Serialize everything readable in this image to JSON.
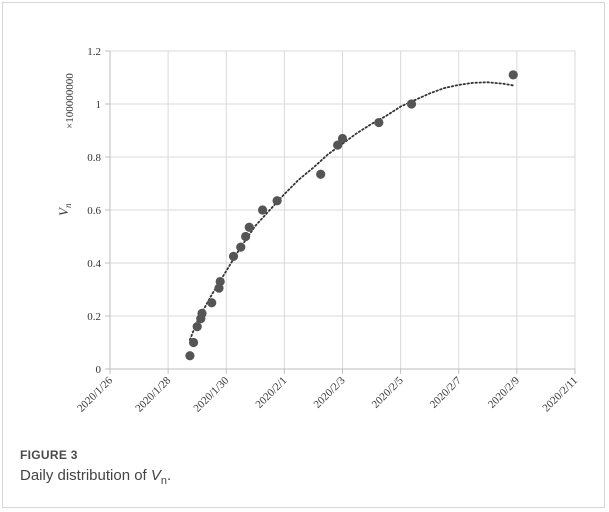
{
  "chart_data": {
    "type": "scatter",
    "title": "",
    "xlabel": "",
    "ylabel": "V",
    "ylabel_subscript": "n",
    "y_multiplier": "×100000000",
    "x_tick_labels": [
      "2020/1/26",
      "2020/1/28",
      "2020/1/30",
      "2020/2/1",
      "2020/2/3",
      "2020/2/5",
      "2020/2/7",
      "2020/2/9",
      "2020/2/11"
    ],
    "y_tick_labels": [
      "0",
      "0.2",
      "0.4",
      "0.6",
      "0.8",
      "1",
      "1.2"
    ],
    "ylim": [
      0,
      1.2
    ],
    "xlim": [
      "2020/1/26",
      "2020/2/11"
    ],
    "grid": true,
    "points": [
      {
        "x": "2020/1/28 18:00",
        "y": 0.05
      },
      {
        "x": "2020/1/28 21:00",
        "y": 0.1
      },
      {
        "x": "2020/1/29 00:00",
        "y": 0.16
      },
      {
        "x": "2020/1/29 03:00",
        "y": 0.19
      },
      {
        "x": "2020/1/29 04:00",
        "y": 0.21
      },
      {
        "x": "2020/1/29 12:00",
        "y": 0.25
      },
      {
        "x": "2020/1/29 18:00",
        "y": 0.305
      },
      {
        "x": "2020/1/29 19:00",
        "y": 0.33
      },
      {
        "x": "2020/1/30 06:00",
        "y": 0.425
      },
      {
        "x": "2020/1/30 12:00",
        "y": 0.46
      },
      {
        "x": "2020/1/30 16:00",
        "y": 0.5
      },
      {
        "x": "2020/1/30 19:00",
        "y": 0.535
      },
      {
        "x": "2020/1/31 06:00",
        "y": 0.6
      },
      {
        "x": "2020/1/31 18:00",
        "y": 0.635
      },
      {
        "x": "2020/2/2 06:00",
        "y": 0.735
      },
      {
        "x": "2020/2/2 20:00",
        "y": 0.845
      },
      {
        "x": "2020/2/3 00:00",
        "y": 0.87
      },
      {
        "x": "2020/2/4 06:00",
        "y": 0.93
      },
      {
        "x": "2020/2/5 09:00",
        "y": 1.0
      },
      {
        "x": "2020/2/8 21:00",
        "y": 1.11
      }
    ],
    "trendline": {
      "style": "dotted",
      "points": [
        {
          "x": "2020/1/28 18:00",
          "y": 0.11
        },
        {
          "x": "2020/1/29 00:00",
          "y": 0.18
        },
        {
          "x": "2020/1/29 12:00",
          "y": 0.28
        },
        {
          "x": "2020/1/30 00:00",
          "y": 0.37
        },
        {
          "x": "2020/1/30 12:00",
          "y": 0.46
        },
        {
          "x": "2020/1/31 00:00",
          "y": 0.54
        },
        {
          "x": "2020/1/31 12:00",
          "y": 0.6
        },
        {
          "x": "2020/2/1 00:00",
          "y": 0.66
        },
        {
          "x": "2020/2/1 12:00",
          "y": 0.715
        },
        {
          "x": "2020/2/2 00:00",
          "y": 0.76
        },
        {
          "x": "2020/2/2 12:00",
          "y": 0.81
        },
        {
          "x": "2020/2/3 00:00",
          "y": 0.85
        },
        {
          "x": "2020/2/3 12:00",
          "y": 0.89
        },
        {
          "x": "2020/2/4 00:00",
          "y": 0.925
        },
        {
          "x": "2020/2/4 12:00",
          "y": 0.955
        },
        {
          "x": "2020/2/5 00:00",
          "y": 0.99
        },
        {
          "x": "2020/2/5 12:00",
          "y": 1.015
        },
        {
          "x": "2020/2/6 00:00",
          "y": 1.04
        },
        {
          "x": "2020/2/6 12:00",
          "y": 1.06
        },
        {
          "x": "2020/2/7 00:00",
          "y": 1.072
        },
        {
          "x": "2020/2/7 12:00",
          "y": 1.08
        },
        {
          "x": "2020/2/8 00:00",
          "y": 1.082
        },
        {
          "x": "2020/2/8 12:00",
          "y": 1.077
        },
        {
          "x": "2020/2/8 21:00",
          "y": 1.07
        }
      ]
    },
    "colors": {
      "point": "#555555",
      "trend": "#333333",
      "grid": "#d9d9d9",
      "axis": "#bfbfbf"
    }
  },
  "caption": {
    "label": "FIGURE 3",
    "text_prefix": "Daily distribution of ",
    "math_var": "V",
    "math_sub": "n",
    "text_suffix": "."
  }
}
